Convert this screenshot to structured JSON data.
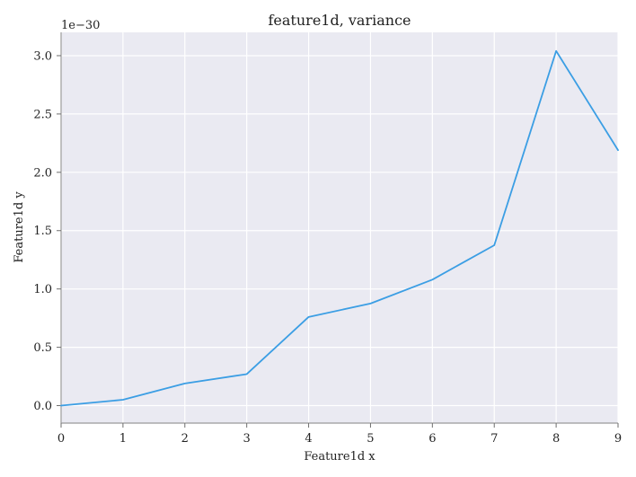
{
  "chart_data": {
    "type": "line",
    "title": "feature1d, variance",
    "xlabel": "Feature1d x",
    "ylabel": "Feature1d y",
    "y_offset_label": "1e−30",
    "x_ticks": [
      "0",
      "1",
      "2",
      "3",
      "4",
      "5",
      "6",
      "7",
      "8",
      "9"
    ],
    "y_ticks": [
      "0.0",
      "0.5",
      "1.0",
      "1.5",
      "2.0",
      "2.5",
      "3.0"
    ],
    "xlim": [
      0,
      9
    ],
    "ylim": [
      -0.15,
      3.2
    ],
    "grid": true,
    "background_color": "#eaeaf2",
    "series": [
      {
        "color": "#3b9ee4",
        "x": [
          0,
          1,
          2,
          3,
          4,
          5,
          6,
          7,
          8,
          9
        ],
        "y": [
          0.0,
          0.05,
          0.19,
          0.27,
          0.76,
          0.875,
          1.08,
          1.375,
          3.04,
          2.19
        ]
      }
    ]
  }
}
